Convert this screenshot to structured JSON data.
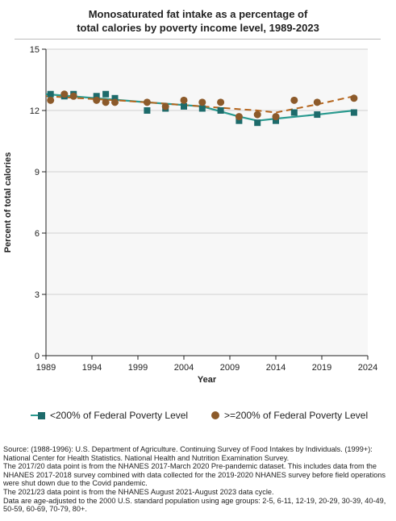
{
  "chart_data": {
    "type": "line",
    "title": "Monosaturated fat intake as a percentage of total calories by poverty income level, 1989-2023",
    "title_lines": [
      "Monosaturated fat intake as a percentage of",
      "total calories by poverty income level, 1989-2023"
    ],
    "xlabel": "Year",
    "ylabel": "Percent of total calories",
    "xlim": [
      1989,
      2024
    ],
    "ylim": [
      0,
      15
    ],
    "x_ticks": [
      1989,
      1994,
      1999,
      2004,
      2009,
      2014,
      2019,
      2024
    ],
    "y_ticks": [
      0,
      3,
      6,
      9,
      12,
      15
    ],
    "grid": "horizontal",
    "legend_position": "bottom",
    "series": [
      {
        "name": "<200% of Federal Poverty Level",
        "marker": "square",
        "color": "#1d6b6b",
        "x": [
          1989.5,
          1991,
          1992,
          1994.5,
          1995.5,
          1996.5,
          2000,
          2002,
          2004,
          2006,
          2008,
          2010,
          2012,
          2014,
          2016,
          2018.5,
          2022.5
        ],
        "y": [
          12.8,
          12.7,
          12.8,
          12.7,
          12.8,
          12.6,
          12.0,
          12.1,
          12.2,
          12.1,
          12.0,
          11.5,
          11.4,
          11.5,
          11.9,
          11.8,
          11.9
        ],
        "trend_x": [
          1989,
          2000,
          2006,
          2010,
          2012,
          2014,
          2018.5,
          2022.5
        ],
        "trend_y": [
          12.8,
          12.4,
          12.2,
          11.7,
          11.5,
          11.6,
          11.8,
          12.0
        ]
      },
      {
        "name": ">=200% of Federal Poverty Level",
        "marker": "circle",
        "color": "#8c5a2a",
        "x": [
          1989.5,
          1991,
          1992,
          1994.5,
          1995.5,
          1996.5,
          2000,
          2002,
          2004,
          2006,
          2008,
          2010,
          2012,
          2014,
          2016,
          2018.5,
          2022.5
        ],
        "y": [
          12.5,
          12.8,
          12.7,
          12.5,
          12.4,
          12.4,
          12.4,
          12.2,
          12.5,
          12.4,
          12.4,
          11.7,
          11.8,
          11.7,
          12.5,
          12.4,
          12.6
        ],
        "trend_x": [
          1989,
          1996.5,
          2000,
          2006,
          2012,
          2014,
          2018.5,
          2022.5
        ],
        "trend_y": [
          12.7,
          12.5,
          12.4,
          12.2,
          12.0,
          11.9,
          12.3,
          12.7
        ]
      }
    ]
  },
  "legend": {
    "items": [
      {
        "label": "<200% of Federal Poverty Level"
      },
      {
        "label": ">=200% of Federal Poverty Level"
      }
    ]
  },
  "footnotes": {
    "lines": [
      "Source: (1988-1996): U.S. Department of Agriculture. Continuing Survey of Food Intakes by Individuals. (1999+): National Center for Health Statistics. National Health and Nutrition Examination Survey.",
      "The 2017/20 data point is from the NHANES 2017-March 2020 Pre-pandemic dataset. This includes data from the NHANES 2017-2018 survey combined with data collected for the 2019-2020 NHANES survey before field operations were shut down due to the Covid pandemic.",
      "The 2021/23 data point is from the NHANES August 2021-August 2023 data cycle.",
      "Data are age-adjusted to the 2000 U.S. standard population using age groups: 2-5, 6-11, 12-19, 20-29, 30-39, 40-49, 50-59, 60-69, 70-79, 80+."
    ]
  },
  "colors": {
    "series1": "#1d6b6b",
    "series1_line": "#2a9a8f",
    "series2": "#8c5a2a",
    "series2_line": "#b5651d",
    "plot_bg": "#f7f7f7",
    "grid": "#d0d0d0"
  }
}
